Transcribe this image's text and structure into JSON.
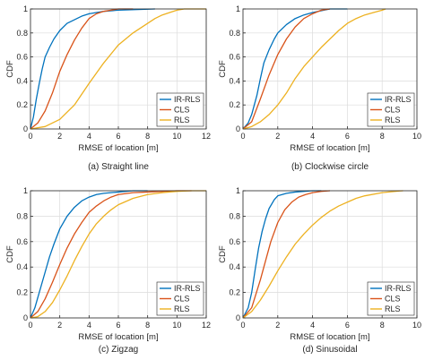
{
  "colors": {
    "ir_rls": "#0072BD",
    "cls": "#D95319",
    "rls": "#EDB120",
    "grid": "#dcdcdc",
    "axis": "#262626"
  },
  "chart_data": [
    {
      "type": "line",
      "caption": "(a) Straight line",
      "xlabel": "RMSE of location [m]",
      "ylabel": "CDF",
      "xlim": [
        0,
        12
      ],
      "ylim": [
        0,
        1
      ],
      "xticks": [
        "0",
        "2",
        "4",
        "6",
        "8",
        "10",
        "12"
      ],
      "yticks": [
        "0",
        "0.2",
        "0.4",
        "0.6",
        "0.8",
        "1"
      ],
      "grid": true,
      "legend_position": "bottom-right",
      "series": [
        {
          "name": "IR-RLS",
          "x": [
            0,
            0.2,
            0.4,
            0.6,
            0.8,
            1.0,
            1.3,
            1.6,
            2.0,
            2.5,
            3.0,
            3.5,
            4.0,
            4.5,
            5.0,
            6.0,
            8.5
          ],
          "y": [
            0,
            0.1,
            0.25,
            0.38,
            0.5,
            0.6,
            0.68,
            0.75,
            0.82,
            0.88,
            0.91,
            0.94,
            0.96,
            0.97,
            0.98,
            0.99,
            1.0
          ]
        },
        {
          "name": "CLS",
          "x": [
            0,
            0.5,
            1.0,
            1.5,
            2.0,
            2.5,
            3.0,
            3.5,
            4.0,
            4.5,
            5.0,
            5.5,
            6.0,
            6.5,
            7.0
          ],
          "y": [
            0,
            0.05,
            0.15,
            0.3,
            0.48,
            0.62,
            0.74,
            0.84,
            0.92,
            0.96,
            0.98,
            0.99,
            1.0,
            1.0,
            1.0
          ]
        },
        {
          "name": "RLS",
          "x": [
            0,
            1.0,
            2.0,
            3.0,
            4.0,
            5.0,
            6.0,
            7.0,
            8.0,
            8.5,
            9.0,
            9.5,
            10.0,
            10.5,
            11.0,
            12.0
          ],
          "y": [
            0,
            0.02,
            0.08,
            0.2,
            0.38,
            0.55,
            0.7,
            0.8,
            0.88,
            0.92,
            0.95,
            0.97,
            0.99,
            1.0,
            1.0,
            1.0
          ]
        }
      ]
    },
    {
      "type": "line",
      "caption": "(b) Clockwise circle",
      "xlabel": "RMSE of location [m]",
      "ylabel": "CDF",
      "xlim": [
        0,
        10
      ],
      "ylim": [
        0,
        1
      ],
      "xticks": [
        "0",
        "2",
        "4",
        "6",
        "8",
        "10"
      ],
      "yticks": [
        "0",
        "0.2",
        "0.4",
        "0.6",
        "0.8",
        "1"
      ],
      "grid": true,
      "legend_position": "bottom-right",
      "series": [
        {
          "name": "IR-RLS",
          "x": [
            0,
            0.3,
            0.5,
            0.8,
            1.0,
            1.2,
            1.5,
            1.8,
            2.0,
            2.5,
            3.0,
            3.5,
            4.0,
            4.5,
            5.0,
            5.5,
            6.0
          ],
          "y": [
            0,
            0.05,
            0.12,
            0.28,
            0.42,
            0.55,
            0.66,
            0.75,
            0.8,
            0.87,
            0.92,
            0.95,
            0.97,
            0.985,
            1.0,
            1.0,
            1.0
          ]
        },
        {
          "name": "CLS",
          "x": [
            0,
            0.5,
            1.0,
            1.5,
            2.0,
            2.5,
            3.0,
            3.5,
            4.0,
            4.5,
            5.0
          ],
          "y": [
            0,
            0.06,
            0.25,
            0.45,
            0.62,
            0.75,
            0.85,
            0.92,
            0.96,
            0.99,
            1.0
          ]
        },
        {
          "name": "RLS",
          "x": [
            0,
            0.5,
            1.0,
            1.5,
            2.0,
            2.5,
            3.0,
            3.5,
            4.0,
            4.5,
            5.0,
            5.5,
            6.0,
            6.5,
            7.0,
            7.5,
            8.0,
            8.2
          ],
          "y": [
            0,
            0.02,
            0.06,
            0.12,
            0.2,
            0.3,
            0.42,
            0.52,
            0.6,
            0.68,
            0.75,
            0.82,
            0.88,
            0.92,
            0.95,
            0.97,
            0.99,
            1.0
          ]
        }
      ]
    },
    {
      "type": "line",
      "caption": "(c) Zigzag",
      "xlabel": "RMSE of location [m]",
      "ylabel": "CDF",
      "xlim": [
        0,
        12
      ],
      "ylim": [
        0,
        1
      ],
      "xticks": [
        "0",
        "2",
        "4",
        "6",
        "8",
        "10",
        "12"
      ],
      "yticks": [
        "0",
        "0.2",
        "0.4",
        "0.6",
        "0.8",
        "1"
      ],
      "grid": true,
      "legend_position": "bottom-right",
      "series": [
        {
          "name": "IR-RLS",
          "x": [
            0,
            0.3,
            0.6,
            1.0,
            1.3,
            1.6,
            2.0,
            2.5,
            3.0,
            3.5,
            4.0,
            4.5,
            5.0,
            6.0,
            7.0,
            8.0
          ],
          "y": [
            0,
            0.08,
            0.2,
            0.36,
            0.48,
            0.58,
            0.7,
            0.8,
            0.87,
            0.92,
            0.95,
            0.97,
            0.98,
            0.99,
            1.0,
            1.0
          ]
        },
        {
          "name": "CLS",
          "x": [
            0,
            0.5,
            1.0,
            1.5,
            2.0,
            2.5,
            3.0,
            3.5,
            4.0,
            4.5,
            5.0,
            5.5,
            6.0,
            7.0,
            8.0,
            9.0,
            10.0,
            11.0
          ],
          "y": [
            0,
            0.05,
            0.15,
            0.28,
            0.42,
            0.55,
            0.66,
            0.75,
            0.83,
            0.88,
            0.92,
            0.95,
            0.97,
            0.985,
            0.99,
            0.995,
            1.0,
            1.0
          ]
        },
        {
          "name": "RLS",
          "x": [
            0,
            0.5,
            1.0,
            1.5,
            2.0,
            2.5,
            3.0,
            3.5,
            4.0,
            4.5,
            5.0,
            5.5,
            6.0,
            7.0,
            8.0,
            9.0,
            10.0,
            11.0,
            12.0
          ],
          "y": [
            0,
            0.01,
            0.05,
            0.12,
            0.22,
            0.33,
            0.45,
            0.56,
            0.66,
            0.74,
            0.8,
            0.85,
            0.89,
            0.94,
            0.97,
            0.985,
            0.995,
            1.0,
            1.0
          ]
        }
      ]
    },
    {
      "type": "line",
      "caption": "(d) Sinusoidal",
      "xlabel": "RMSE of location [m]",
      "ylabel": "CDF",
      "xlim": [
        0,
        10
      ],
      "ylim": [
        0,
        1
      ],
      "xticks": [
        "0",
        "2",
        "4",
        "6",
        "8",
        "10"
      ],
      "yticks": [
        "0",
        "0.2",
        "0.4",
        "0.6",
        "0.8",
        "1"
      ],
      "grid": true,
      "legend_position": "bottom-right",
      "series": [
        {
          "name": "IR-RLS",
          "x": [
            0,
            0.3,
            0.5,
            0.7,
            0.9,
            1.1,
            1.3,
            1.5,
            1.8,
            2.0,
            2.5,
            3.0,
            3.5,
            4.0,
            4.5
          ],
          "y": [
            0,
            0.08,
            0.2,
            0.38,
            0.55,
            0.68,
            0.78,
            0.86,
            0.93,
            0.96,
            0.98,
            0.99,
            0.995,
            1.0,
            1.0
          ]
        },
        {
          "name": "CLS",
          "x": [
            0,
            0.5,
            1.0,
            1.3,
            1.6,
            2.0,
            2.4,
            2.8,
            3.2,
            3.6,
            4.0,
            4.5,
            5.0
          ],
          "y": [
            0,
            0.08,
            0.3,
            0.45,
            0.6,
            0.75,
            0.85,
            0.91,
            0.95,
            0.97,
            0.985,
            0.995,
            1.0
          ]
        },
        {
          "name": "RLS",
          "x": [
            0,
            0.5,
            1.0,
            1.5,
            2.0,
            2.5,
            3.0,
            3.5,
            4.0,
            4.5,
            5.0,
            5.5,
            6.0,
            6.5,
            7.0,
            8.0,
            9.0,
            9.2
          ],
          "y": [
            0,
            0.05,
            0.14,
            0.25,
            0.37,
            0.48,
            0.58,
            0.66,
            0.73,
            0.79,
            0.84,
            0.88,
            0.91,
            0.94,
            0.96,
            0.985,
            0.998,
            1.0
          ]
        }
      ]
    }
  ]
}
